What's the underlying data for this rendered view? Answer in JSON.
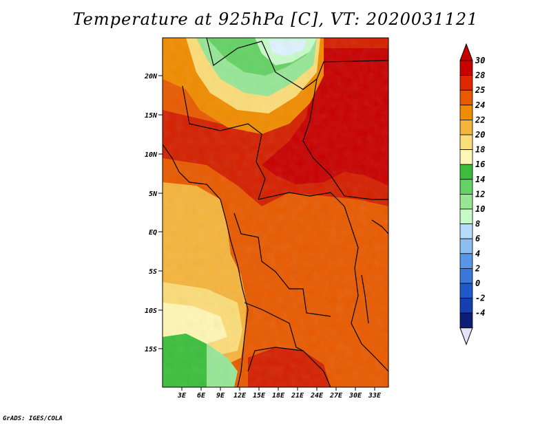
{
  "title": "Temperature at 925hPa [C], VT: 2020031121",
  "credit": "GrADS: IGES/COLA",
  "map": {
    "lat_ticks": [
      "20N",
      "15N",
      "10N",
      "5N",
      "EQ",
      "5S",
      "10S",
      "15S"
    ],
    "lon_ticks": [
      "3E",
      "6E",
      "9E",
      "12E",
      "15E",
      "18E",
      "21E",
      "24E",
      "27E",
      "30E",
      "33E"
    ]
  },
  "colorbar": {
    "labels": [
      "30",
      "28",
      "25",
      "24",
      "22",
      "20",
      "18",
      "16",
      "14",
      "12",
      "10",
      "8",
      "6",
      "4",
      "2",
      "0",
      "-2",
      "-4"
    ],
    "colors": [
      "#c80000",
      "#e02800",
      "#e85a00",
      "#f08c00",
      "#f5b43c",
      "#fadc78",
      "#fff5b4",
      "#3cbe3c",
      "#64d264",
      "#96e696",
      "#c8fac8",
      "#b4dcff",
      "#8cbef0",
      "#5a96e6",
      "#3c78dc",
      "#1e5ac8",
      "#1440b4",
      "#0a1e78"
    ],
    "low_arrow_color": "#e6e0fa"
  }
}
